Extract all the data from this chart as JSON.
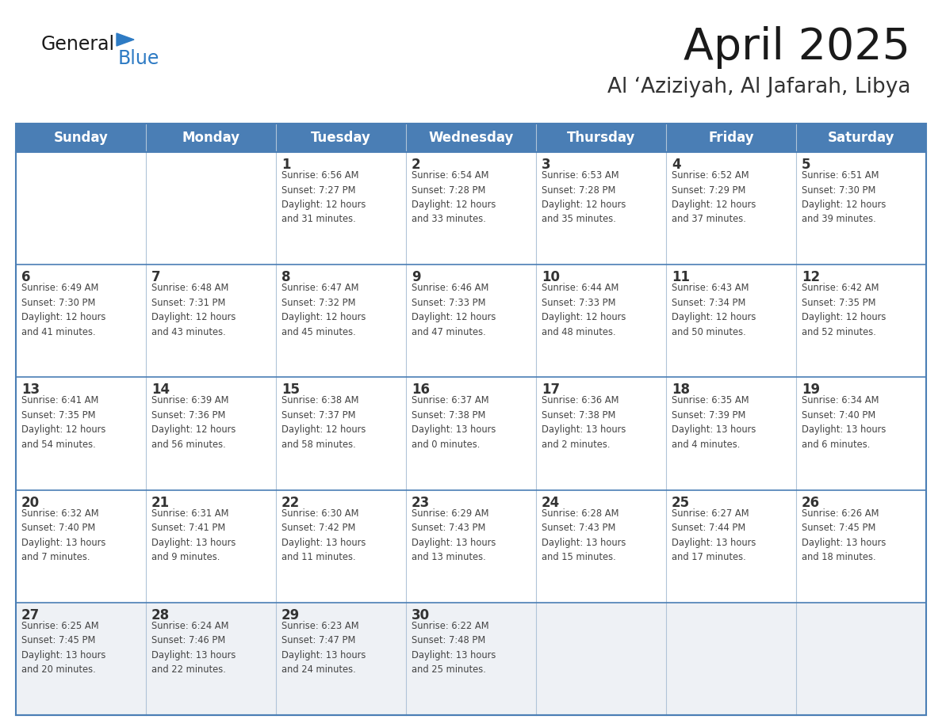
{
  "title": "April 2025",
  "subtitle": "Al ‘Aziziyah, Al Jafarah, Libya",
  "header_bg_color": "#4a7eb5",
  "header_text_color": "#ffffff",
  "cell_bg_white": "#ffffff",
  "cell_bg_light": "#eef1f5",
  "day_number_color": "#333333",
  "cell_text_color": "#444444",
  "border_color": "#4a7eb5",
  "row_line_color": "#4a7eb5",
  "days_of_week": [
    "Sunday",
    "Monday",
    "Tuesday",
    "Wednesday",
    "Thursday",
    "Friday",
    "Saturday"
  ],
  "weeks": [
    [
      {
        "day": "",
        "info": ""
      },
      {
        "day": "",
        "info": ""
      },
      {
        "day": "1",
        "info": "Sunrise: 6:56 AM\nSunset: 7:27 PM\nDaylight: 12 hours\nand 31 minutes."
      },
      {
        "day": "2",
        "info": "Sunrise: 6:54 AM\nSunset: 7:28 PM\nDaylight: 12 hours\nand 33 minutes."
      },
      {
        "day": "3",
        "info": "Sunrise: 6:53 AM\nSunset: 7:28 PM\nDaylight: 12 hours\nand 35 minutes."
      },
      {
        "day": "4",
        "info": "Sunrise: 6:52 AM\nSunset: 7:29 PM\nDaylight: 12 hours\nand 37 minutes."
      },
      {
        "day": "5",
        "info": "Sunrise: 6:51 AM\nSunset: 7:30 PM\nDaylight: 12 hours\nand 39 minutes."
      }
    ],
    [
      {
        "day": "6",
        "info": "Sunrise: 6:49 AM\nSunset: 7:30 PM\nDaylight: 12 hours\nand 41 minutes."
      },
      {
        "day": "7",
        "info": "Sunrise: 6:48 AM\nSunset: 7:31 PM\nDaylight: 12 hours\nand 43 minutes."
      },
      {
        "day": "8",
        "info": "Sunrise: 6:47 AM\nSunset: 7:32 PM\nDaylight: 12 hours\nand 45 minutes."
      },
      {
        "day": "9",
        "info": "Sunrise: 6:46 AM\nSunset: 7:33 PM\nDaylight: 12 hours\nand 47 minutes."
      },
      {
        "day": "10",
        "info": "Sunrise: 6:44 AM\nSunset: 7:33 PM\nDaylight: 12 hours\nand 48 minutes."
      },
      {
        "day": "11",
        "info": "Sunrise: 6:43 AM\nSunset: 7:34 PM\nDaylight: 12 hours\nand 50 minutes."
      },
      {
        "day": "12",
        "info": "Sunrise: 6:42 AM\nSunset: 7:35 PM\nDaylight: 12 hours\nand 52 minutes."
      }
    ],
    [
      {
        "day": "13",
        "info": "Sunrise: 6:41 AM\nSunset: 7:35 PM\nDaylight: 12 hours\nand 54 minutes."
      },
      {
        "day": "14",
        "info": "Sunrise: 6:39 AM\nSunset: 7:36 PM\nDaylight: 12 hours\nand 56 minutes."
      },
      {
        "day": "15",
        "info": "Sunrise: 6:38 AM\nSunset: 7:37 PM\nDaylight: 12 hours\nand 58 minutes."
      },
      {
        "day": "16",
        "info": "Sunrise: 6:37 AM\nSunset: 7:38 PM\nDaylight: 13 hours\nand 0 minutes."
      },
      {
        "day": "17",
        "info": "Sunrise: 6:36 AM\nSunset: 7:38 PM\nDaylight: 13 hours\nand 2 minutes."
      },
      {
        "day": "18",
        "info": "Sunrise: 6:35 AM\nSunset: 7:39 PM\nDaylight: 13 hours\nand 4 minutes."
      },
      {
        "day": "19",
        "info": "Sunrise: 6:34 AM\nSunset: 7:40 PM\nDaylight: 13 hours\nand 6 minutes."
      }
    ],
    [
      {
        "day": "20",
        "info": "Sunrise: 6:32 AM\nSunset: 7:40 PM\nDaylight: 13 hours\nand 7 minutes."
      },
      {
        "day": "21",
        "info": "Sunrise: 6:31 AM\nSunset: 7:41 PM\nDaylight: 13 hours\nand 9 minutes."
      },
      {
        "day": "22",
        "info": "Sunrise: 6:30 AM\nSunset: 7:42 PM\nDaylight: 13 hours\nand 11 minutes."
      },
      {
        "day": "23",
        "info": "Sunrise: 6:29 AM\nSunset: 7:43 PM\nDaylight: 13 hours\nand 13 minutes."
      },
      {
        "day": "24",
        "info": "Sunrise: 6:28 AM\nSunset: 7:43 PM\nDaylight: 13 hours\nand 15 minutes."
      },
      {
        "day": "25",
        "info": "Sunrise: 6:27 AM\nSunset: 7:44 PM\nDaylight: 13 hours\nand 17 minutes."
      },
      {
        "day": "26",
        "info": "Sunrise: 6:26 AM\nSunset: 7:45 PM\nDaylight: 13 hours\nand 18 minutes."
      }
    ],
    [
      {
        "day": "27",
        "info": "Sunrise: 6:25 AM\nSunset: 7:45 PM\nDaylight: 13 hours\nand 20 minutes."
      },
      {
        "day": "28",
        "info": "Sunrise: 6:24 AM\nSunset: 7:46 PM\nDaylight: 13 hours\nand 22 minutes."
      },
      {
        "day": "29",
        "info": "Sunrise: 6:23 AM\nSunset: 7:47 PM\nDaylight: 13 hours\nand 24 minutes."
      },
      {
        "day": "30",
        "info": "Sunrise: 6:22 AM\nSunset: 7:48 PM\nDaylight: 13 hours\nand 25 minutes."
      },
      {
        "day": "",
        "info": ""
      },
      {
        "day": "",
        "info": ""
      },
      {
        "day": "",
        "info": ""
      }
    ]
  ],
  "row_bg_colors": [
    "#ffffff",
    "#ffffff",
    "#ffffff",
    "#ffffff",
    "#eef1f5"
  ],
  "figsize": [
    11.88,
    9.18
  ],
  "dpi": 100
}
